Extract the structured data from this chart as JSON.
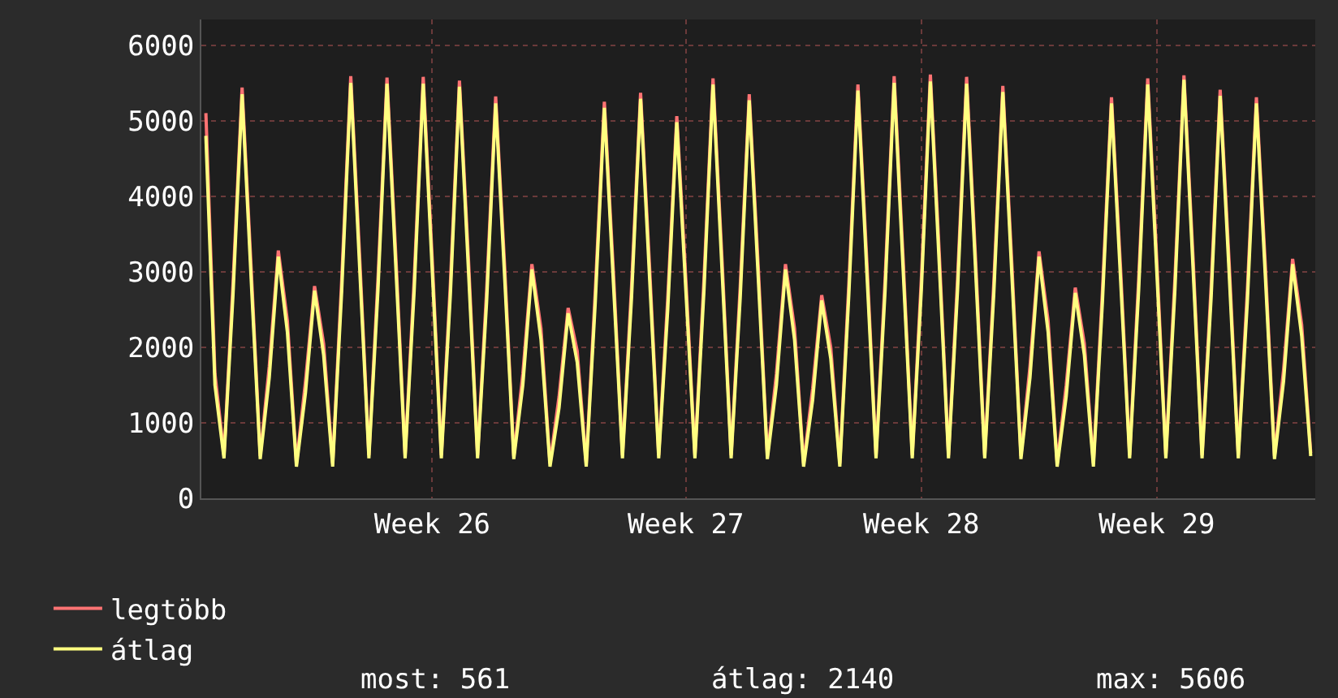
{
  "chart_data": {
    "type": "line",
    "categories": [
      null,
      null,
      null,
      null,
      null,
      null,
      null,
      null,
      null,
      null,
      null,
      null,
      null,
      null,
      null,
      null,
      null,
      null,
      null,
      null,
      null,
      null,
      null,
      null,
      null,
      "Week 26",
      null,
      null,
      null,
      null,
      null,
      null,
      null,
      null,
      null,
      null,
      null,
      null,
      null,
      null,
      null,
      null,
      null,
      null,
      null,
      null,
      null,
      null,
      null,
      null,
      null,
      null,
      null,
      "Week 27",
      null,
      null,
      null,
      null,
      null,
      null,
      null,
      null,
      null,
      null,
      null,
      null,
      null,
      null,
      null,
      null,
      null,
      null,
      null,
      null,
      null,
      null,
      null,
      null,
      null,
      "Week 28",
      null,
      null,
      null,
      null,
      null,
      null,
      null,
      null,
      null,
      null,
      null,
      null,
      null,
      null,
      null,
      null,
      null,
      null,
      null,
      null,
      null,
      null,
      null,
      null,
      null,
      "Week 29",
      null,
      null,
      null,
      null,
      null,
      null,
      null,
      null,
      null,
      null,
      null,
      null,
      null,
      null,
      null,
      null,
      null
    ],
    "series": [
      {
        "name": "legtöbb",
        "color": "#ff7373",
        "values": [
          5100,
          1650,
          570,
          2850,
          5440,
          3050,
          560,
          1750,
          3280,
          2350,
          460,
          1550,
          2810,
          2050,
          460,
          2900,
          5590,
          3150,
          570,
          2900,
          5570,
          3150,
          570,
          2900,
          5580,
          3150,
          570,
          2850,
          5530,
          3150,
          570,
          2750,
          5320,
          3050,
          560,
          1650,
          3100,
          2250,
          460,
          1350,
          2520,
          1950,
          460,
          2750,
          5250,
          3000,
          570,
          2800,
          5370,
          3050,
          570,
          2650,
          5060,
          2900,
          570,
          2900,
          5560,
          3150,
          570,
          2800,
          5350,
          3050,
          560,
          1650,
          3100,
          2250,
          460,
          1450,
          2690,
          2000,
          460,
          2850,
          5480,
          3100,
          570,
          2900,
          5590,
          3150,
          570,
          2900,
          5610,
          3200,
          570,
          2900,
          5580,
          3150,
          570,
          2850,
          5460,
          3100,
          560,
          1750,
          3270,
          2350,
          460,
          1500,
          2790,
          2050,
          460,
          2750,
          5310,
          3050,
          570,
          2900,
          5560,
          3150,
          570,
          2900,
          5600,
          3200,
          570,
          2800,
          5410,
          3100,
          570,
          2750,
          5310,
          3050,
          560,
          1700,
          3170,
          2300,
          600
        ]
      },
      {
        "name": "átlag",
        "color": "#ffff80",
        "values": [
          4800,
          1500,
          530,
          2700,
          5350,
          2900,
          520,
          1600,
          3200,
          2200,
          420,
          1400,
          2750,
          1900,
          420,
          2750,
          5500,
          3000,
          530,
          2750,
          5490,
          3000,
          530,
          2750,
          5490,
          3000,
          530,
          2700,
          5450,
          3000,
          530,
          2600,
          5230,
          2900,
          520,
          1500,
          3030,
          2100,
          420,
          1200,
          2450,
          1800,
          420,
          2600,
          5170,
          2850,
          530,
          2650,
          5290,
          2900,
          530,
          2500,
          4980,
          2750,
          530,
          2750,
          5480,
          3000,
          530,
          2650,
          5270,
          2900,
          520,
          1500,
          3030,
          2100,
          420,
          1300,
          2620,
          1850,
          420,
          2700,
          5400,
          2950,
          530,
          2750,
          5500,
          3000,
          530,
          2750,
          5520,
          3050,
          530,
          2750,
          5490,
          3000,
          530,
          2700,
          5380,
          2950,
          520,
          1600,
          3200,
          2200,
          420,
          1350,
          2720,
          1900,
          420,
          2600,
          5230,
          2900,
          530,
          2750,
          5480,
          3000,
          530,
          2750,
          5540,
          3050,
          530,
          2650,
          5330,
          2950,
          530,
          2600,
          5230,
          2900,
          520,
          1550,
          3100,
          2150,
          560
        ]
      }
    ],
    "ylim": [
      0,
      6340
    ],
    "yticks": [
      0,
      1000,
      2000,
      3000,
      4000,
      5000,
      6000
    ],
    "grid": true,
    "legend": "bottom left",
    "annotations": [
      "most: 561",
      "átlag: 2140",
      "max: 5606"
    ]
  }
}
